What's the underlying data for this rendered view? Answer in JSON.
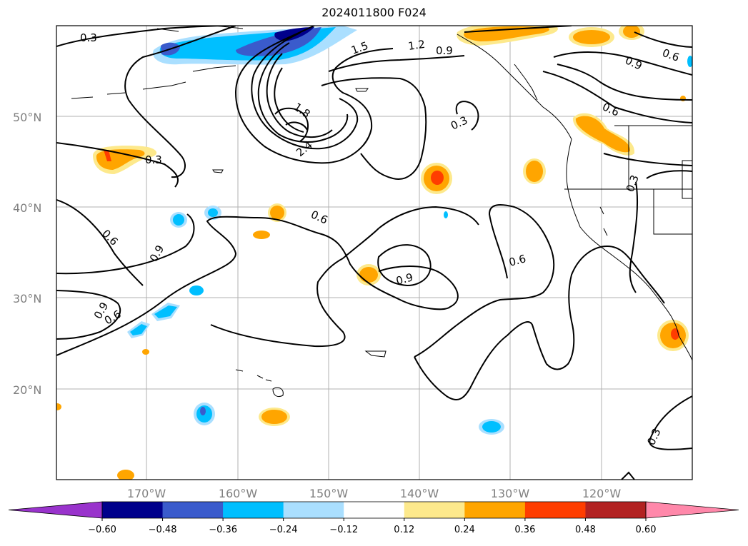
{
  "title": "2024011800 F024",
  "lat_labels": [
    "50°N",
    "40°N",
    "30°N",
    "20°N"
  ],
  "lon_labels": [
    "170°W",
    "160°W",
    "150°W",
    "140°W",
    "130°W",
    "120°W"
  ],
  "contour_labels": [
    "0.3",
    "1.5",
    "1.2",
    "0.9",
    "0.6",
    "0.9",
    "0.6",
    "1.8",
    "2.4",
    "0.3",
    "0.3",
    "0.6",
    "0.9",
    "0.3",
    "0.6",
    "0.9",
    "0.6",
    "0.9",
    "0.6",
    "0.3"
  ],
  "colorbar": {
    "ticks": [
      "−0.60",
      "−0.48",
      "−0.36",
      "−0.24",
      "−0.12",
      "0.12",
      "0.24",
      "0.36",
      "0.48",
      "0.60"
    ],
    "colors": [
      "#9933cc",
      "#00008b",
      "#3a5bcc",
      "#00bfff",
      "#aadfff",
      "#ffffff",
      "#fde98c",
      "#ffa500",
      "#ff3d00",
      "#b22222",
      "#ff88aa"
    ]
  }
}
